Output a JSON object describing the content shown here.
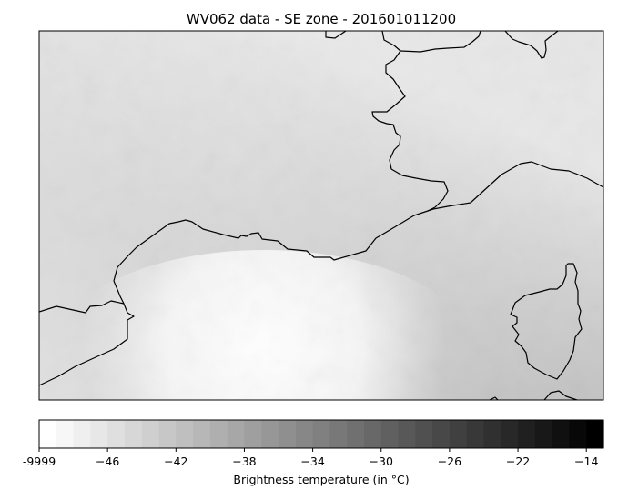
{
  "title": "WV062 data - SE zone - 201601011200",
  "colorbar": {
    "label": "Brightness temperature (in °C)",
    "tick_labels": [
      "-9999",
      "−46",
      "−42",
      "−38",
      "−34",
      "−30",
      "−26",
      "−22",
      "−14"
    ],
    "n_levels": 33,
    "color_low": "#ffffff",
    "color_high": "#000000"
  },
  "map": {
    "colormap": "greys",
    "coastline_color": "#000000"
  }
}
